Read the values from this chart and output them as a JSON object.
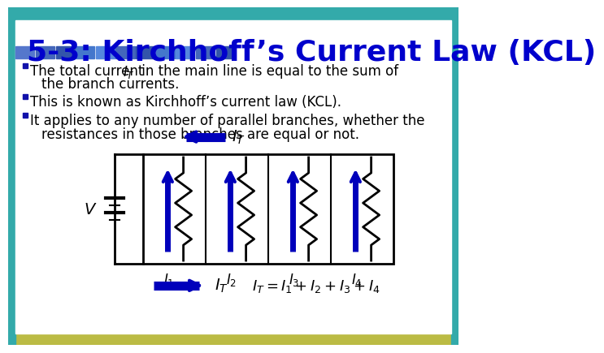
{
  "title": "5-3: Kirchhoff’s Current Law (KCL)",
  "title_color": "#0000CC",
  "bg_color": "#FFFFFF",
  "text_color": "#000000",
  "arrow_color": "#0000BB",
  "tile_colors": [
    "#5577CC",
    "#4466BB",
    "#3355AA",
    "#4477CC",
    "#5588DD",
    "#4466BB",
    "#3355AA",
    "#4477CC",
    "#5588DD",
    "#4466BB",
    "#3355AA"
  ],
  "border_top_color": "#44BBBB",
  "border_bottom_color": "#AAAA33",
  "border_left_color": "#44BBBB",
  "border_right_color": "#44BBBB"
}
